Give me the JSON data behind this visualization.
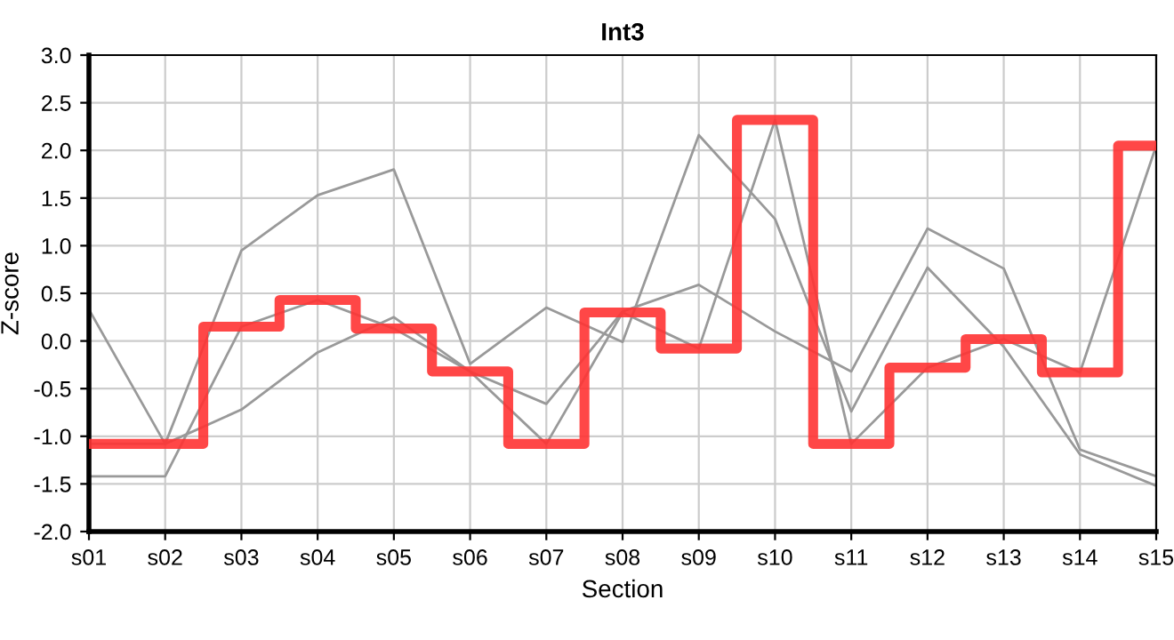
{
  "chart_data": {
    "type": "line",
    "title": "Int3",
    "xlabel": "Section",
    "ylabel": "Z-score",
    "categories": [
      "s01",
      "s02",
      "s03",
      "s04",
      "s05",
      "s06",
      "s07",
      "s08",
      "s09",
      "s10",
      "s11",
      "s12",
      "s13",
      "s14",
      "s15"
    ],
    "series": [
      {
        "color": "#999999",
        "values": [
          0.33,
          -1.08,
          0.95,
          1.53,
          1.8,
          -0.24,
          0.35,
          -0.01,
          2.16,
          1.28,
          -0.74,
          0.77,
          -0.06,
          -1.19,
          -1.52
        ]
      },
      {
        "color": "#999999",
        "values": [
          -1.42,
          -1.42,
          0.15,
          0.43,
          0.13,
          -0.32,
          -1.08,
          0.3,
          -0.08,
          2.32,
          -1.08,
          -0.28,
          0.02,
          -0.33,
          2.05
        ]
      },
      {
        "color": "#999999",
        "values": [
          -1.08,
          -1.08,
          -0.72,
          -0.12,
          0.25,
          -0.32,
          -0.66,
          0.31,
          0.59,
          0.1,
          -0.32,
          1.18,
          0.76,
          -1.14,
          -1.42
        ]
      },
      {
        "type": "step",
        "color": "#ff3333",
        "values": [
          -1.08,
          -1.08,
          0.15,
          0.43,
          0.13,
          -0.32,
          -1.08,
          0.3,
          -0.08,
          2.32,
          -1.08,
          -0.28,
          0.02,
          -0.33,
          2.05
        ]
      }
    ],
    "ylim": [
      -2,
      3
    ],
    "yticks": [
      {
        "value": -2,
        "label": "-2.0"
      },
      {
        "value": -1.5,
        "label": "-1.5"
      },
      {
        "value": -1,
        "label": "-1.0"
      },
      {
        "value": -0.5,
        "label": "-0.5"
      },
      {
        "value": 0,
        "label": "0.0"
      },
      {
        "value": 0.5,
        "label": "0.5"
      },
      {
        "value": 1,
        "label": "1.0"
      },
      {
        "value": 1.5,
        "label": "1.5"
      },
      {
        "value": 2,
        "label": "2.0"
      },
      {
        "value": 2.5,
        "label": "2.5"
      },
      {
        "value": 3,
        "label": "3.0"
      }
    ],
    "grid": true
  }
}
